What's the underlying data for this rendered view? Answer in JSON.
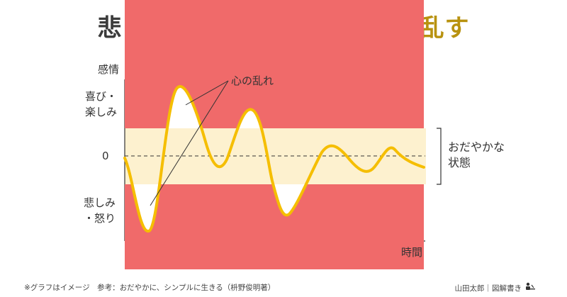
{
  "title": {
    "part1": "悲しみも喜びも",
    "part2": "過ぎれば心を乱す"
  },
  "axis": {
    "y_label": "感情",
    "x_label": "時間",
    "joy_line1": "喜び・",
    "joy_line2": "楽しみ",
    "zero": "0",
    "sad_line1": "悲しみ",
    "sad_line2": "・怒り"
  },
  "annotation": {
    "disturbance": "心の乱れ"
  },
  "calm": {
    "line1": "おだやかな",
    "line2": "状態"
  },
  "footer": {
    "note": "※グラフはイメージ　参考：おだやかに、シンプルに生きる（枡野俊明著）",
    "credit": "山田太郎｜図解書き"
  },
  "colors": {
    "wave": "#f5be00",
    "calm_band": "#fdf1cf",
    "peak_fill": "#f06a6a",
    "title_gold": "#b8920f",
    "title_dark": "#3b3b3b"
  },
  "icons": [
    "writing-person-icon"
  ]
}
